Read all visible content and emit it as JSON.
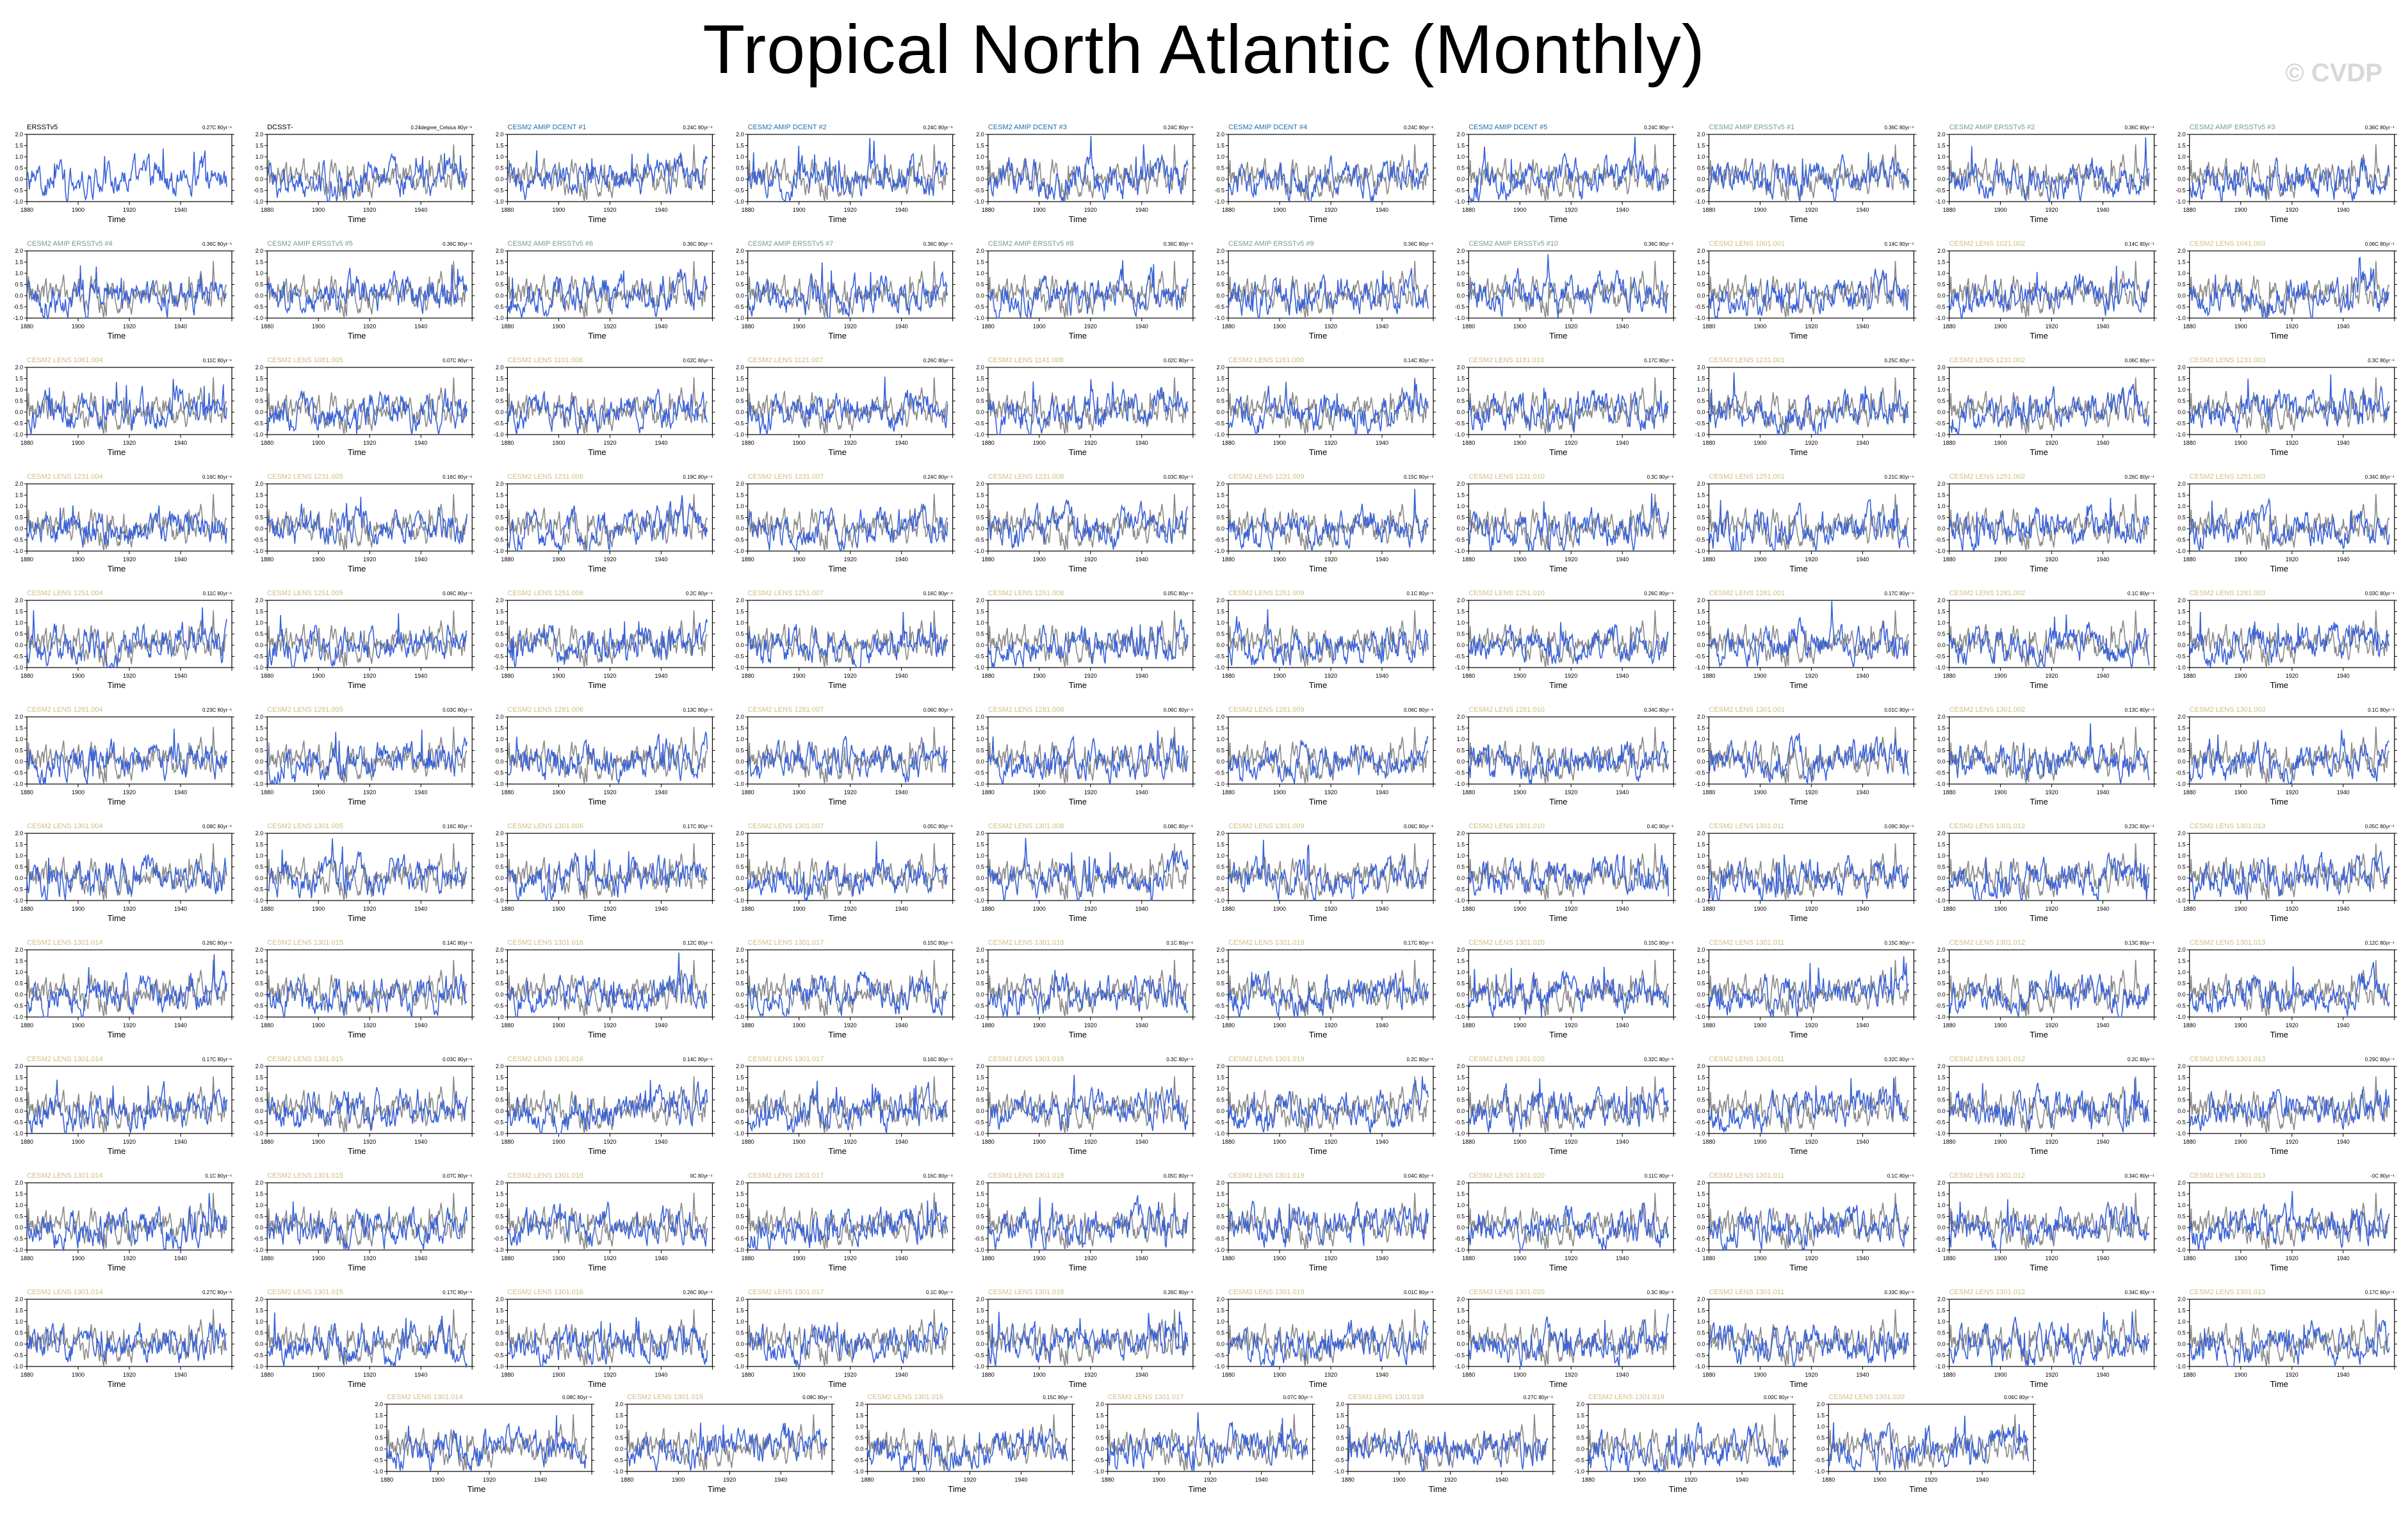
{
  "page": {
    "title": "Tropical North Atlantic (Monthly)",
    "watermark": "© CVDP"
  },
  "colors": {
    "model_line": "#3a62d8",
    "observation_line": "#8a8a8a",
    "obs_title": "#000000",
    "dcent_title": "#1e6fa8",
    "ersst_title": "#6f9d8a",
    "lens_title": "#d0bd82"
  },
  "chart_data": {
    "type": "line",
    "xlabel": "Time",
    "xlim": [
      1880,
      1960
    ],
    "ylim": [
      -1.0,
      2.0
    ],
    "xticks": [
      "1880",
      "1900",
      "1920",
      "1940",
      "1960"
    ],
    "yticks": [
      "-1.0",
      "-0.5",
      "0.0",
      "0.5",
      "1.0",
      "1.5",
      "2.0"
    ],
    "grid": false,
    "panels": [
      {
        "title": "ERSSTv5",
        "group": "obs",
        "trend": "0.27C 80yr⁻¹"
      },
      {
        "title": "DCSST-",
        "group": "obs",
        "trend": "0.24degree_Celsius 80yr⁻¹"
      },
      {
        "title": "CESM2 AMIP DCENT #1",
        "group": "dcent",
        "trend": "0.24C 80yr⁻¹"
      },
      {
        "title": "CESM2 AMIP DCENT #2",
        "group": "dcent",
        "trend": "0.24C 80yr⁻¹"
      },
      {
        "title": "CESM2 AMIP DCENT #3",
        "group": "dcent",
        "trend": "0.24C 80yr⁻¹"
      },
      {
        "title": "CESM2 AMIP DCENT #4",
        "group": "dcent",
        "trend": "0.24C 80yr⁻¹"
      },
      {
        "title": "CESM2 AMIP DCENT #5",
        "group": "dcent",
        "trend": "0.24C 80yr⁻¹"
      },
      {
        "title": "CESM2 AMIP ERSSTv5 #1",
        "group": "ersst",
        "trend": "0.36C 80yr⁻¹"
      },
      {
        "title": "CESM2 AMIP ERSSTv5 #2",
        "group": "ersst",
        "trend": "0.36C 80yr⁻¹"
      },
      {
        "title": "CESM2 AMIP ERSSTv5 #3",
        "group": "ersst",
        "trend": "0.36C 80yr⁻¹"
      },
      {
        "title": "CESM2 AMIP ERSSTv5 #4",
        "group": "ersst",
        "trend": "0.36C 80yr⁻¹"
      },
      {
        "title": "CESM2 AMIP ERSSTv5 #5",
        "group": "ersst",
        "trend": "0.36C 80yr⁻¹"
      },
      {
        "title": "CESM2 AMIP ERSSTv5 #6",
        "group": "ersst",
        "trend": "0.36C 80yr⁻¹"
      },
      {
        "title": "CESM2 AMIP ERSSTv5 #7",
        "group": "ersst",
        "trend": "0.36C 80yr⁻¹"
      },
      {
        "title": "CESM2 AMIP ERSSTv5 #8",
        "group": "ersst",
        "trend": "0.36C 80yr⁻¹"
      },
      {
        "title": "CESM2 AMIP ERSSTv5 #9",
        "group": "ersst",
        "trend": "0.36C 80yr⁻¹"
      },
      {
        "title": "CESM2 AMIP ERSSTv5 #10",
        "group": "ersst",
        "trend": "0.36C 80yr⁻¹"
      },
      {
        "title": "CESM2 LENS 1001.001",
        "group": "lens",
        "trend": "0.14C 80yr⁻¹"
      },
      {
        "title": "CESM2 LENS 1021.002",
        "group": "lens",
        "trend": "0.14C 80yr⁻¹"
      },
      {
        "title": "CESM2 LENS 1041.003",
        "group": "lens",
        "trend": "0.06C 80yr⁻¹"
      },
      {
        "title": "CESM2 LENS 1061.004",
        "group": "lens",
        "trend": "0.11C 80yr⁻¹"
      },
      {
        "title": "CESM2 LENS 1081.005",
        "group": "lens",
        "trend": "0.07C 80yr⁻¹"
      },
      {
        "title": "CESM2 LENS 1101.006",
        "group": "lens",
        "trend": "0.02C 80yr⁻¹"
      },
      {
        "title": "CESM2 LENS 1121.007",
        "group": "lens",
        "trend": "0.26C 80yr⁻¹"
      },
      {
        "title": "CESM2 LENS 1141.008",
        "group": "lens",
        "trend": "0.02C 80yr⁻¹"
      },
      {
        "title": "CESM2 LENS 1161.009",
        "group": "lens",
        "trend": "0.14C 80yr⁻¹"
      },
      {
        "title": "CESM2 LENS 1181.010",
        "group": "lens",
        "trend": "0.17C 80yr⁻¹"
      },
      {
        "title": "CESM2 LENS 1231.001",
        "group": "lens",
        "trend": "0.25C 80yr⁻¹"
      },
      {
        "title": "CESM2 LENS 1231.002",
        "group": "lens",
        "trend": "0.06C 80yr⁻¹"
      },
      {
        "title": "CESM2 LENS 1231.003",
        "group": "lens",
        "trend": "0.3C 80yr⁻¹"
      },
      {
        "title": "CESM2 LENS 1231.004",
        "group": "lens",
        "trend": "0.16C 80yr⁻¹"
      },
      {
        "title": "CESM2 LENS 1231.005",
        "group": "lens",
        "trend": "0.16C 80yr⁻¹"
      },
      {
        "title": "CESM2 LENS 1231.006",
        "group": "lens",
        "trend": "0.19C 80yr⁻¹"
      },
      {
        "title": "CESM2 LENS 1231.007",
        "group": "lens",
        "trend": "0.24C 80yr⁻¹"
      },
      {
        "title": "CESM2 LENS 1231.008",
        "group": "lens",
        "trend": "0.03C 80yr⁻¹"
      },
      {
        "title": "CESM2 LENS 1231.009",
        "group": "lens",
        "trend": "0.15C 80yr⁻¹"
      },
      {
        "title": "CESM2 LENS 1231.010",
        "group": "lens",
        "trend": "0.3C 80yr⁻¹"
      },
      {
        "title": "CESM2 LENS 1251.001",
        "group": "lens",
        "trend": "0.21C 80yr⁻¹"
      },
      {
        "title": "CESM2 LENS 1251.002",
        "group": "lens",
        "trend": "0.26C 80yr⁻¹"
      },
      {
        "title": "CESM2 LENS 1251.003",
        "group": "lens",
        "trend": "0.34C 80yr⁻¹"
      },
      {
        "title": "CESM2 LENS 1251.004",
        "group": "lens",
        "trend": "0.11C 80yr⁻¹"
      },
      {
        "title": "CESM2 LENS 1251.005",
        "group": "lens",
        "trend": "0.06C 80yr⁻¹"
      },
      {
        "title": "CESM2 LENS 1251.006",
        "group": "lens",
        "trend": "0.2C 80yr⁻¹"
      },
      {
        "title": "CESM2 LENS 1251.007",
        "group": "lens",
        "trend": "0.16C 80yr⁻¹"
      },
      {
        "title": "CESM2 LENS 1251.008",
        "group": "lens",
        "trend": "0.05C 80yr⁻¹"
      },
      {
        "title": "CESM2 LENS 1251.009",
        "group": "lens",
        "trend": "0.1C 80yr⁻¹"
      },
      {
        "title": "CESM2 LENS 1251.010",
        "group": "lens",
        "trend": "0.26C 80yr⁻¹"
      },
      {
        "title": "CESM2 LENS 1281.001",
        "group": "lens",
        "trend": "0.17C 80yr⁻¹"
      },
      {
        "title": "CESM2 LENS 1281.002",
        "group": "lens",
        "trend": "0.1C 80yr⁻¹"
      },
      {
        "title": "CESM2 LENS 1281.003",
        "group": "lens",
        "trend": "0.03C 80yr⁻¹"
      },
      {
        "title": "CESM2 LENS 1281.004",
        "group": "lens",
        "trend": "0.23C 80yr⁻¹"
      },
      {
        "title": "CESM2 LENS 1281.005",
        "group": "lens",
        "trend": "0.03C 80yr⁻¹"
      },
      {
        "title": "CESM2 LENS 1281.006",
        "group": "lens",
        "trend": "0.13C 80yr⁻¹"
      },
      {
        "title": "CESM2 LENS 1281.007",
        "group": "lens",
        "trend": "0.06C 80yr⁻¹"
      },
      {
        "title": "CESM2 LENS 1281.008",
        "group": "lens",
        "trend": "0.06C 80yr⁻¹"
      },
      {
        "title": "CESM2 LENS 1281.009",
        "group": "lens",
        "trend": "0.06C 80yr⁻¹"
      },
      {
        "title": "CESM2 LENS 1281.010",
        "group": "lens",
        "trend": "0.34C 80yr⁻¹"
      },
      {
        "title": "CESM2 LENS 1301.001",
        "group": "lens",
        "trend": "0.01C 80yr⁻¹"
      },
      {
        "title": "CESM2 LENS 1301.002",
        "group": "lens",
        "trend": "0.13C 80yr⁻¹"
      },
      {
        "title": "CESM2 LENS 1301.003",
        "group": "lens",
        "trend": "0.1C 80yr⁻¹"
      },
      {
        "title": "CESM2 LENS 1301.004",
        "group": "lens",
        "trend": "0.08C 80yr⁻¹"
      },
      {
        "title": "CESM2 LENS 1301.005",
        "group": "lens",
        "trend": "0.16C 80yr⁻¹"
      },
      {
        "title": "CESM2 LENS 1301.006",
        "group": "lens",
        "trend": "0.17C 80yr⁻¹"
      },
      {
        "title": "CESM2 LENS 1301.007",
        "group": "lens",
        "trend": "0.05C 80yr⁻¹"
      },
      {
        "title": "CESM2 LENS 1301.008",
        "group": "lens",
        "trend": "0.08C 80yr⁻¹"
      },
      {
        "title": "CESM2 LENS 1301.009",
        "group": "lens",
        "trend": "0.06C 80yr⁻¹"
      },
      {
        "title": "CESM2 LENS 1301.010",
        "group": "lens",
        "trend": "0.4C 80yr⁻¹"
      },
      {
        "title": "CESM2 LENS 1301.011",
        "group": "lens",
        "trend": "0.09C 80yr⁻¹"
      },
      {
        "title": "CESM2 LENS 1301.012",
        "group": "lens",
        "trend": "0.23C 80yr⁻¹"
      },
      {
        "title": "CESM2 LENS 1301.013",
        "group": "lens",
        "trend": "0.05C 80yr⁻¹"
      },
      {
        "title": "CESM2 LENS 1301.014",
        "group": "lens",
        "trend": "0.26C 80yr⁻¹"
      },
      {
        "title": "CESM2 LENS 1301.015",
        "group": "lens",
        "trend": "0.14C 80yr⁻¹"
      },
      {
        "title": "CESM2 LENS 1301.016",
        "group": "lens",
        "trend": "0.12C 80yr⁻¹"
      },
      {
        "title": "CESM2 LENS 1301.017",
        "group": "lens",
        "trend": "0.15C 80yr⁻¹"
      },
      {
        "title": "CESM2 LENS 1301.018",
        "group": "lens",
        "trend": "0.1C 80yr⁻¹"
      },
      {
        "title": "CESM2 LENS 1301.019",
        "group": "lens",
        "trend": "0.17C 80yr⁻¹"
      },
      {
        "title": "CESM2 LENS 1301.020",
        "group": "lens",
        "trend": "0.15C 80yr⁻¹"
      },
      {
        "title": "CESM2 LENS 1301.011",
        "group": "lens",
        "trend": "0.15C 80yr⁻¹"
      },
      {
        "title": "CESM2 LENS 1301.012",
        "group": "lens",
        "trend": "0.13C 80yr⁻¹"
      },
      {
        "title": "CESM2 LENS 1301.013",
        "group": "lens",
        "trend": "0.12C 80yr⁻¹"
      },
      {
        "title": "CESM2 LENS 1301.014",
        "group": "lens",
        "trend": "0.17C 80yr⁻¹"
      },
      {
        "title": "CESM2 LENS 1301.015",
        "group": "lens",
        "trend": "0.03C 80yr⁻¹"
      },
      {
        "title": "CESM2 LENS 1301.016",
        "group": "lens",
        "trend": "0.14C 80yr⁻¹"
      },
      {
        "title": "CESM2 LENS 1301.017",
        "group": "lens",
        "trend": "0.16C 80yr⁻¹"
      },
      {
        "title": "CESM2 LENS 1301.018",
        "group": "lens",
        "trend": "0.3C 80yr⁻¹"
      },
      {
        "title": "CESM2 LENS 1301.019",
        "group": "lens",
        "trend": "0.2C 80yr⁻¹"
      },
      {
        "title": "CESM2 LENS 1301.020",
        "group": "lens",
        "trend": "0.32C 80yr⁻¹"
      },
      {
        "title": "CESM2 LENS 1301.011",
        "group": "lens",
        "trend": "0.32C 80yr⁻¹"
      },
      {
        "title": "CESM2 LENS 1301.012",
        "group": "lens",
        "trend": "0.2C 80yr⁻¹"
      },
      {
        "title": "CESM2 LENS 1301.013",
        "group": "lens",
        "trend": "0.29C 80yr⁻¹"
      },
      {
        "title": "CESM2 LENS 1301.014",
        "group": "lens",
        "trend": "0.1C 80yr⁻¹"
      },
      {
        "title": "CESM2 LENS 1301.015",
        "group": "lens",
        "trend": "0.07C 80yr⁻¹"
      },
      {
        "title": "CESM2 LENS 1301.016",
        "group": "lens",
        "trend": "0C 80yr⁻¹"
      },
      {
        "title": "CESM2 LENS 1301.017",
        "group": "lens",
        "trend": "0.16C 80yr⁻¹"
      },
      {
        "title": "CESM2 LENS 1301.018",
        "group": "lens",
        "trend": "0.05C 80yr⁻¹"
      },
      {
        "title": "CESM2 LENS 1301.019",
        "group": "lens",
        "trend": "0.04C 80yr⁻¹"
      },
      {
        "title": "CESM2 LENS 1301.020",
        "group": "lens",
        "trend": "0.11C 80yr⁻¹"
      },
      {
        "title": "CESM2 LENS 1301.011",
        "group": "lens",
        "trend": "0.1C 80yr⁻¹"
      },
      {
        "title": "CESM2 LENS 1301.012",
        "group": "lens",
        "trend": "0.34C 80yr⁻¹"
      },
      {
        "title": "CESM2 LENS 1301.013",
        "group": "lens",
        "trend": "-0C 80yr⁻¹"
      },
      {
        "title": "CESM2 LENS 1301.014",
        "group": "lens",
        "trend": "0.27C 80yr⁻¹"
      },
      {
        "title": "CESM2 LENS 1301.015",
        "group": "lens",
        "trend": "0.17C 80yr⁻¹"
      },
      {
        "title": "CESM2 LENS 1301.016",
        "group": "lens",
        "trend": "0.26C 80yr⁻¹"
      },
      {
        "title": "CESM2 LENS 1301.017",
        "group": "lens",
        "trend": "0.1C 80yr⁻¹"
      },
      {
        "title": "CESM2 LENS 1301.018",
        "group": "lens",
        "trend": "0.26C 80yr⁻¹"
      },
      {
        "title": "CESM2 LENS 1301.019",
        "group": "lens",
        "trend": "0.01C 80yr⁻¹"
      },
      {
        "title": "CESM2 LENS 1301.020",
        "group": "lens",
        "trend": "0.3C 80yr⁻¹"
      },
      {
        "title": "CESM2 LENS 1301.011",
        "group": "lens",
        "trend": "0.33C 80yr⁻¹"
      },
      {
        "title": "CESM2 LENS 1301.012",
        "group": "lens",
        "trend": "0.34C 80yr⁻¹"
      },
      {
        "title": "CESM2 LENS 1301.013",
        "group": "lens",
        "trend": "0.17C 80yr⁻¹"
      },
      {
        "title": "CESM2 LENS 1301.014",
        "group": "lens",
        "trend": "0.08C 80yr⁻¹"
      },
      {
        "title": "CESM2 LENS 1301.015",
        "group": "lens",
        "trend": "0.08C 80yr⁻¹"
      },
      {
        "title": "CESM2 LENS 1301.016",
        "group": "lens",
        "trend": "0.15C 80yr⁻¹"
      },
      {
        "title": "CESM2 LENS 1301.017",
        "group": "lens",
        "trend": "0.07C 80yr⁻¹"
      },
      {
        "title": "CESM2 LENS 1301.018",
        "group": "lens",
        "trend": "0.27C 80yr⁻¹"
      },
      {
        "title": "CESM2 LENS 1301.019",
        "group": "lens",
        "trend": "0.00C 80yr⁻¹"
      },
      {
        "title": "CESM2 LENS 1301.020",
        "group": "lens",
        "trend": "0.06C 80yr⁻¹"
      }
    ]
  }
}
